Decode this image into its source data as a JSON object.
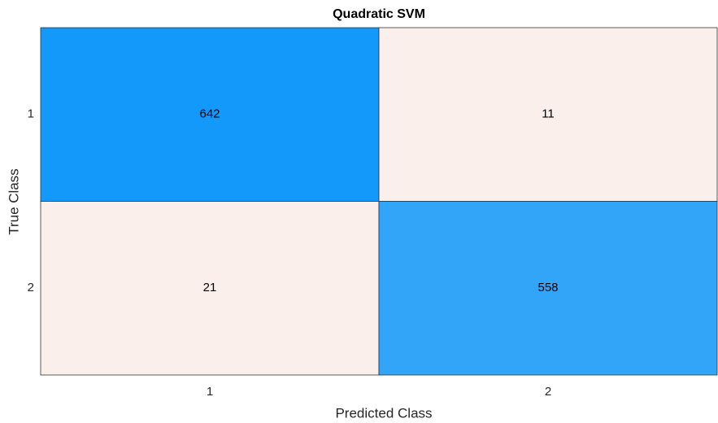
{
  "chart_data": {
    "type": "heatmap",
    "title": "Quadratic SVM",
    "x_label": "Predicted Class",
    "y_label": "True Class",
    "x_categories": [
      "1",
      "2"
    ],
    "y_categories": [
      "1",
      "2"
    ],
    "values": [
      [
        642,
        11
      ],
      [
        21,
        558
      ]
    ],
    "cell_colors": [
      [
        "#1399f9",
        "#fbefec"
      ],
      [
        "#fbefec",
        "#33a5f9"
      ]
    ]
  }
}
